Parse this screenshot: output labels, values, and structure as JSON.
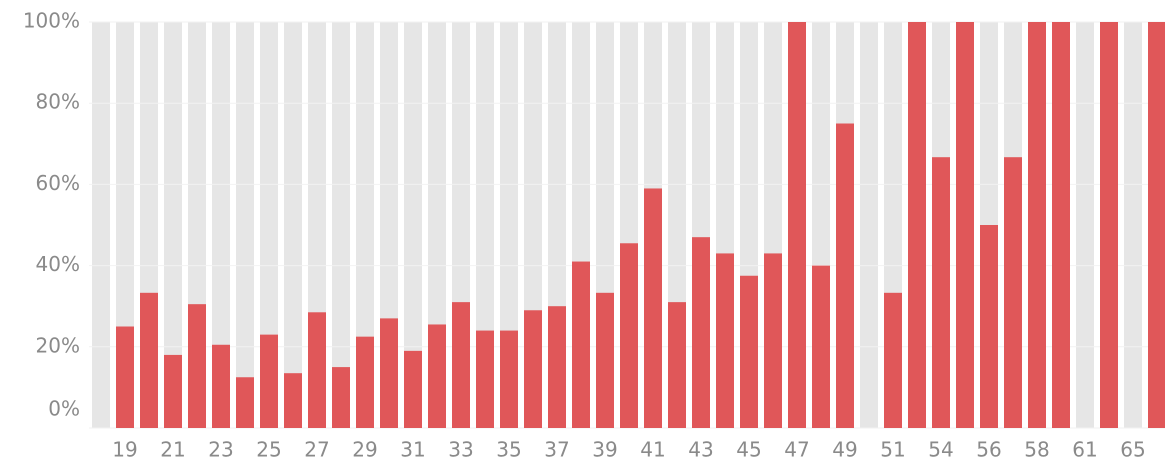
{
  "chart_data": {
    "type": "bar",
    "categories": [
      null,
      "19",
      null,
      "21",
      null,
      "23",
      null,
      "25",
      null,
      "27",
      null,
      "29",
      null,
      "31",
      null,
      "33",
      null,
      "35",
      null,
      "37",
      null,
      "39",
      null,
      "41",
      null,
      "43",
      null,
      "45",
      null,
      "47",
      null,
      "49",
      null,
      "51",
      null,
      "54",
      null,
      "56",
      null,
      "58",
      null,
      "61",
      null,
      "65",
      null
    ],
    "values": [
      0,
      25,
      33.3,
      18,
      30.5,
      20.5,
      12.5,
      23,
      13.5,
      28.5,
      15,
      22.5,
      27,
      19,
      25.5,
      31,
      24,
      24,
      29,
      30,
      41,
      33.3,
      45.5,
      59,
      31,
      47,
      43,
      37.5,
      43,
      100,
      40,
      75,
      0,
      33.3,
      100,
      66.7,
      100,
      50,
      66.7,
      100,
      100,
      0,
      100,
      0,
      100
    ],
    "color": "#e05759",
    "ylim": [
      0,
      100
    ],
    "yticks": [
      {
        "value": 0,
        "label": "0%"
      },
      {
        "value": 20,
        "label": "20%"
      },
      {
        "value": 40,
        "label": "40%"
      },
      {
        "value": 60,
        "label": "60%"
      },
      {
        "value": 80,
        "label": "80%"
      },
      {
        "value": 100,
        "label": "100%"
      }
    ],
    "grid": true
  }
}
